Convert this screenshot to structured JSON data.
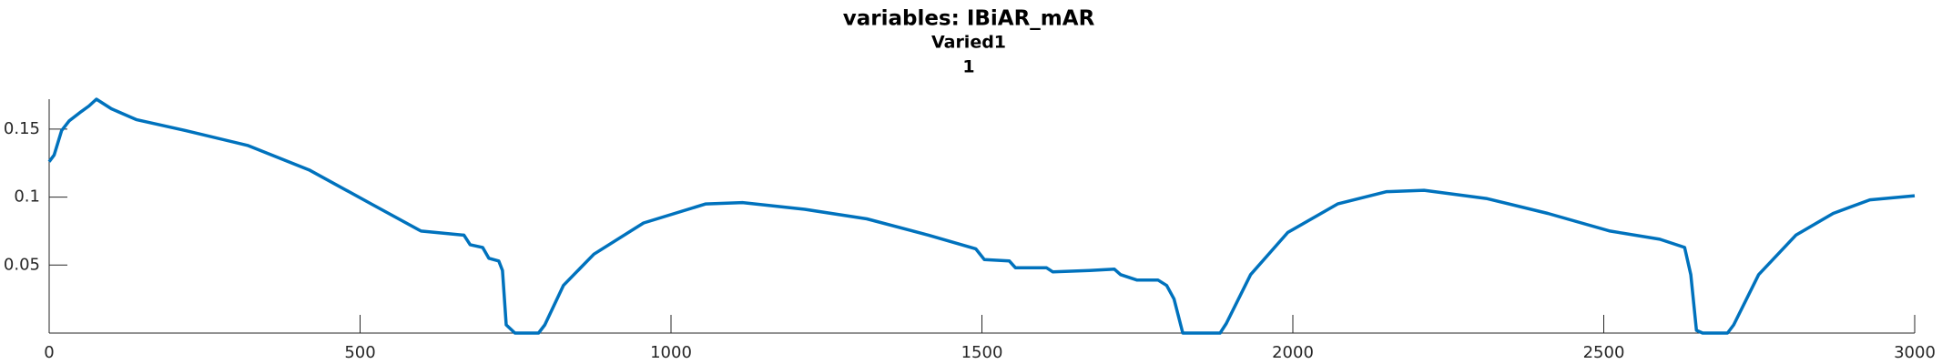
{
  "chart_data": {
    "type": "line",
    "title": "variables: IBiAR_mAR",
    "subtitle": "Varied1",
    "subtitle2": "1",
    "x": [
      0,
      8,
      20,
      32,
      52,
      64,
      76,
      100,
      140,
      219,
      319,
      418,
      518,
      598,
      667,
      677,
      697,
      707,
      723,
      729,
      735,
      749,
      787,
      797,
      827,
      876,
      956,
      1056,
      1115,
      1215,
      1315,
      1414,
      1490,
      1504,
      1544,
      1554,
      1604,
      1614,
      1673,
      1713,
      1723,
      1749,
      1783,
      1797,
      1809,
      1823,
      1883,
      1893,
      1932,
      1992,
      2072,
      2151,
      2211,
      2311,
      2410,
      2510,
      2590,
      2630,
      2640,
      2649,
      2659,
      2699,
      2709,
      2749,
      2809,
      2869,
      2928,
      3000
    ],
    "series": [
      {
        "name": "IBiAR_mAR",
        "color": "#0072bd",
        "values": [
          0.126,
          0.131,
          0.149,
          0.156,
          0.163,
          0.167,
          0.172,
          0.165,
          0.157,
          0.149,
          0.138,
          0.12,
          0.095,
          0.075,
          0.072,
          0.065,
          0.063,
          0.055,
          0.053,
          0.046,
          0.006,
          0,
          0,
          0.006,
          0.035,
          0.058,
          0.081,
          0.095,
          0.096,
          0.091,
          0.084,
          0.072,
          0.062,
          0.054,
          0.053,
          0.048,
          0.048,
          0.045,
          0.046,
          0.047,
          0.043,
          0.039,
          0.039,
          0.035,
          0.025,
          0,
          0,
          0.007,
          0.043,
          0.074,
          0.095,
          0.104,
          0.105,
          0.099,
          0.088,
          0.075,
          0.069,
          0.063,
          0.043,
          0.002,
          0,
          0,
          0.006,
          0.043,
          0.072,
          0.088,
          0.098,
          0.101
        ]
      }
    ],
    "xlim": [
      0,
      3000
    ],
    "ylim": [
      0,
      0.172
    ],
    "xticks": [
      0,
      500,
      1000,
      1500,
      2000,
      2500,
      3000
    ],
    "yticks": [
      0.05,
      0.1,
      0.15
    ]
  }
}
